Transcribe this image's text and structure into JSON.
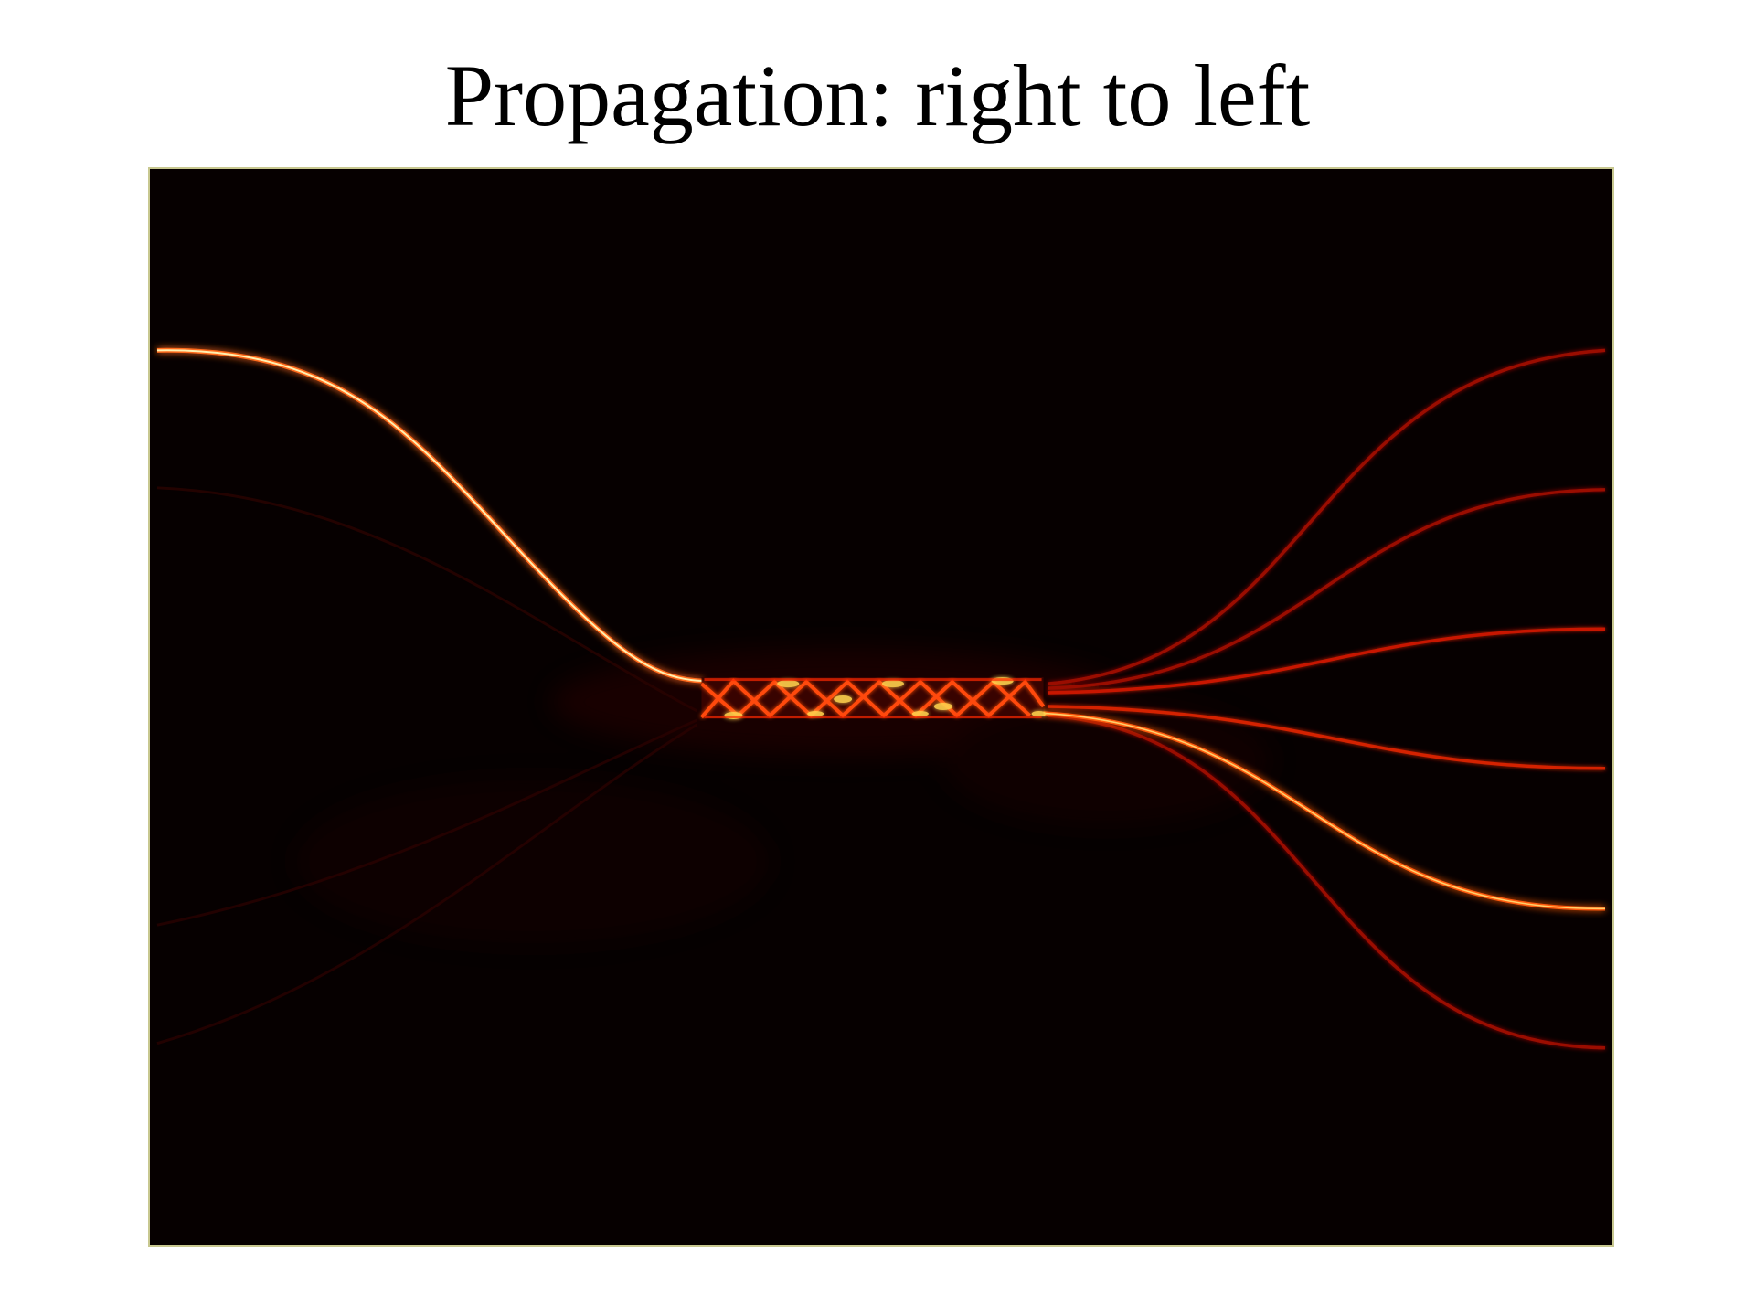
{
  "slide": {
    "title": "Propagation: right to left"
  },
  "colors": {
    "background": "#ffffff",
    "field_background": "#060000",
    "frame_border": "#c8c890",
    "bright_guide": "#ff6a1a",
    "core_glow": "#fff0b0",
    "dim_guide": "#9a0d00",
    "coupler_hot": "#ffd24d"
  }
}
